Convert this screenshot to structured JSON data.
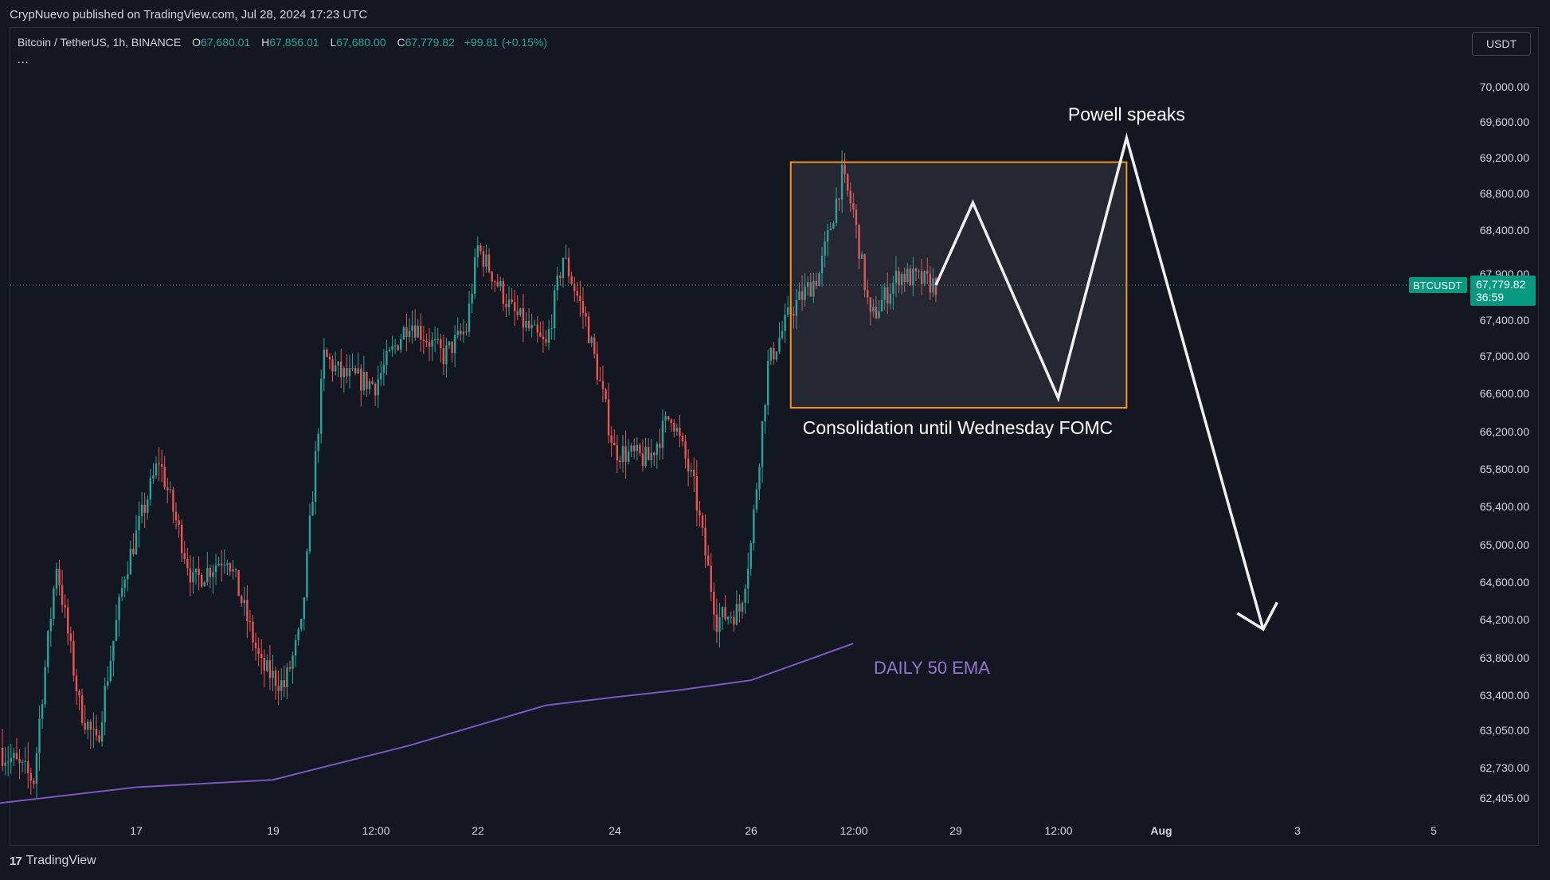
{
  "header": {
    "published": "CrypNuevo published on TradingView.com, Jul 28, 2024 17:23 UTC"
  },
  "legend": {
    "symbol": "Bitcoin / TetherUS, 1h, BINANCE",
    "open_label": "O",
    "open": "67,680.01",
    "high_label": "H",
    "high": "67,856.01",
    "low_label": "L",
    "low": "67,680.00",
    "close_label": "C",
    "close": "67,779.82",
    "change": "+99.81 (+0.15%)",
    "more": "..."
  },
  "toolbar": {
    "currency": "USDT"
  },
  "footer": {
    "brand": "TradingView"
  },
  "colors": {
    "background": "#131722",
    "up": "#26a69a",
    "down": "#ef5350",
    "ema": "#7e57c2",
    "box_border": "#f7931a",
    "annotation": "#ffffff",
    "price_tag": "#089981"
  },
  "chart_data": {
    "type": "candlestick",
    "symbol": "BTCUSDT",
    "timeframe": "1h",
    "y_ticks": [
      "62,405.00",
      "62,730.00",
      "63,050.00",
      "63,400.00",
      "63,800.00",
      "64,200.00",
      "64,600.00",
      "65,000.00",
      "65,400.00",
      "65,800.00",
      "66,200.00",
      "66,600.00",
      "67,000.00",
      "67,400.00",
      "67,900.00",
      "68,400.00",
      "68,800.00",
      "69,200.00",
      "69,600.00",
      "70,000.00"
    ],
    "x_ticks": [
      "17",
      "19",
      "12:00",
      "22",
      "24",
      "26",
      "12:00",
      "29",
      "12:00",
      "Aug",
      "3",
      "5"
    ],
    "last_price": {
      "symbol": "BTCUSDT",
      "value": "67,779.82",
      "countdown": "36:59"
    },
    "price_path": [
      {
        "date": "2024-07-15 00:00",
        "price": 62900
      },
      {
        "date": "2024-07-15 12:00",
        "price": 62600
      },
      {
        "date": "2024-07-15 20:00",
        "price": 64800
      },
      {
        "date": "2024-07-16 04:00",
        "price": 63300
      },
      {
        "date": "2024-07-16 10:00",
        "price": 62900
      },
      {
        "date": "2024-07-16 20:00",
        "price": 64700
      },
      {
        "date": "2024-07-17 08:00",
        "price": 65900
      },
      {
        "date": "2024-07-17 20:00",
        "price": 64600
      },
      {
        "date": "2024-07-18 08:00",
        "price": 64900
      },
      {
        "date": "2024-07-18 20:00",
        "price": 63700
      },
      {
        "date": "2024-07-19 04:00",
        "price": 63500
      },
      {
        "date": "2024-07-19 10:00",
        "price": 64100
      },
      {
        "date": "2024-07-19 18:00",
        "price": 67000
      },
      {
        "date": "2024-07-20 00:00",
        "price": 66800
      },
      {
        "date": "2024-07-20 12:00",
        "price": 66700
      },
      {
        "date": "2024-07-21 00:00",
        "price": 67400
      },
      {
        "date": "2024-07-21 12:00",
        "price": 67000
      },
      {
        "date": "2024-07-21 20:00",
        "price": 67300
      },
      {
        "date": "2024-07-22 00:00",
        "price": 68200
      },
      {
        "date": "2024-07-22 12:00",
        "price": 67500
      },
      {
        "date": "2024-07-23 00:00",
        "price": 67100
      },
      {
        "date": "2024-07-23 06:00",
        "price": 68100
      },
      {
        "date": "2024-07-23 14:00",
        "price": 67400
      },
      {
        "date": "2024-07-24 00:00",
        "price": 66000
      },
      {
        "date": "2024-07-24 12:00",
        "price": 65900
      },
      {
        "date": "2024-07-24 20:00",
        "price": 66400
      },
      {
        "date": "2024-07-25 04:00",
        "price": 65600
      },
      {
        "date": "2024-07-25 12:00",
        "price": 64200
      },
      {
        "date": "2024-07-25 20:00",
        "price": 64300
      },
      {
        "date": "2024-07-26 00:00",
        "price": 65000
      },
      {
        "date": "2024-07-26 06:00",
        "price": 66900
      },
      {
        "date": "2024-07-26 14:00",
        "price": 67500
      },
      {
        "date": "2024-07-27 00:00",
        "price": 67900
      },
      {
        "date": "2024-07-27 08:00",
        "price": 69000
      },
      {
        "date": "2024-07-27 12:00",
        "price": 68600
      },
      {
        "date": "2024-07-27 18:00",
        "price": 67400
      },
      {
        "date": "2024-07-28 04:00",
        "price": 67900
      },
      {
        "date": "2024-07-28 17:00",
        "price": 67780
      }
    ],
    "ema": {
      "label": "DAILY 50 EMA",
      "points": [
        {
          "date": "2024-07-15 00:00",
          "value": 62350
        },
        {
          "date": "2024-07-17 00:00",
          "value": 62520
        },
        {
          "date": "2024-07-19 00:00",
          "value": 62600
        },
        {
          "date": "2024-07-21 00:00",
          "value": 62920
        },
        {
          "date": "2024-07-23 00:00",
          "value": 63300
        },
        {
          "date": "2024-07-24 00:00",
          "value": 63380
        },
        {
          "date": "2024-07-25 00:00",
          "value": 63460
        },
        {
          "date": "2024-07-26 00:00",
          "value": 63560
        },
        {
          "date": "2024-07-27 12:00",
          "value": 63950
        }
      ]
    },
    "annotations": {
      "box": {
        "label": "Consolidation until Wednesday FOMC",
        "start": "2024-07-26 14:00",
        "end": "2024-07-31 12:00",
        "price_top": 69150,
        "price_bottom": 66450
      },
      "projection": {
        "label": "Powell speaks",
        "points": [
          {
            "date": "2024-07-28 17:00",
            "price": 67780
          },
          {
            "date": "2024-07-29 06:00",
            "price": 68700
          },
          {
            "date": "2024-07-30 12:00",
            "price": 66550
          },
          {
            "date": "2024-07-31 12:00",
            "price": 69420
          },
          {
            "date": "2024-08-02 12:00",
            "price": 64100
          }
        ]
      }
    }
  }
}
